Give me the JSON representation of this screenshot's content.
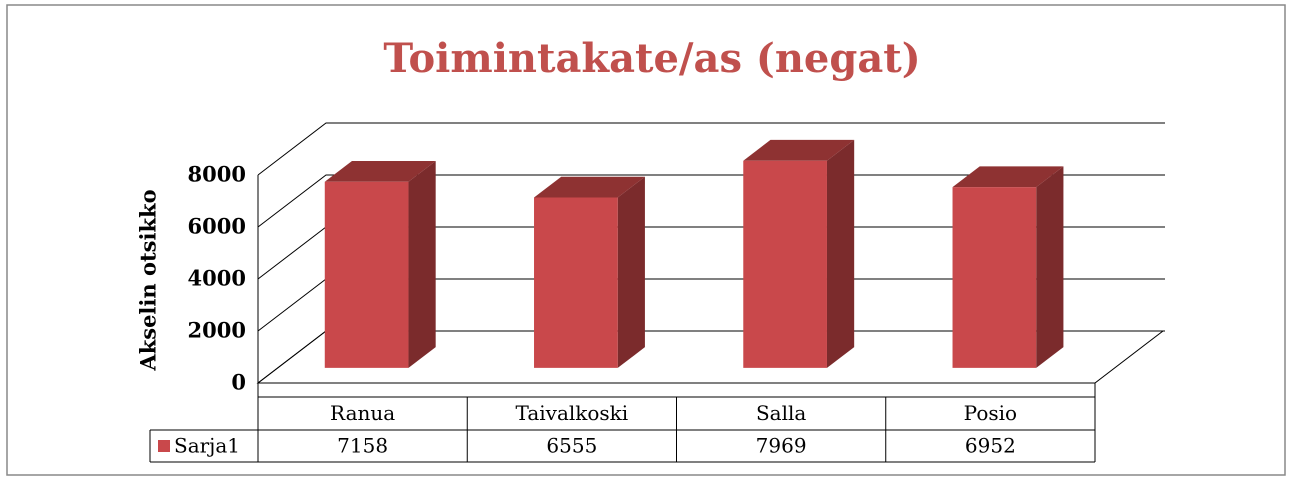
{
  "chart_data": {
    "type": "bar3d",
    "title": "Toimintakate/as (negat)",
    "y_label": "Akselin otsikko",
    "categories": [
      "Ranua",
      "Taivalkoski",
      "Salla",
      "Posio"
    ],
    "series": [
      {
        "name": "Sarja1",
        "color": "#c9484b",
        "values": [
          7158,
          6555,
          7969,
          6952
        ]
      }
    ],
    "ylim": [
      0,
      8000
    ],
    "yticks": [
      0,
      2000,
      4000,
      6000,
      8000
    ],
    "grid": true,
    "data_table": true
  }
}
